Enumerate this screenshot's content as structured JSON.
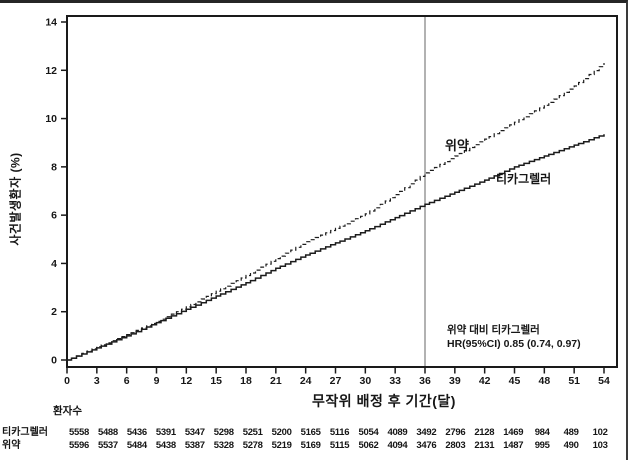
{
  "chart_data": {
    "type": "line",
    "subtype": "kaplan-meier-cumulative-incidence",
    "title": "",
    "xlabel": "무작위 배정 후 기간(달)",
    "ylabel": "사건발생환자 (%)",
    "xlim": [
      0,
      54
    ],
    "ylim": [
      0,
      14
    ],
    "xticks": [
      0,
      3,
      6,
      9,
      12,
      15,
      18,
      21,
      24,
      27,
      30,
      33,
      36,
      39,
      42,
      45,
      48,
      51,
      54
    ],
    "yticks": [
      0,
      2,
      4,
      6,
      8,
      10,
      12,
      14
    ],
    "grid": "off",
    "reference_line_x": 36,
    "x_months": [
      0,
      3,
      6,
      9,
      12,
      15,
      18,
      21,
      24,
      27,
      30,
      33,
      36,
      39,
      42,
      45,
      48,
      51,
      54
    ],
    "series": [
      {
        "name": "위약",
        "style": "dashed",
        "values": [
          0,
          0.55,
          1.05,
          1.6,
          2.2,
          2.85,
          3.5,
          4.2,
          4.9,
          5.45,
          6.05,
          6.85,
          7.75,
          8.45,
          9.15,
          9.85,
          10.55,
          11.35,
          12.3
        ]
      },
      {
        "name": "티카그렐러",
        "style": "solid",
        "values": [
          0,
          0.5,
          1.0,
          1.55,
          2.1,
          2.65,
          3.2,
          3.8,
          4.35,
          4.85,
          5.35,
          5.9,
          6.45,
          6.95,
          7.45,
          8.0,
          8.45,
          8.9,
          9.35
        ]
      }
    ],
    "annotation": {
      "line1": "위약 대비 티카그렐러",
      "line2": "HR(95%CI) 0.85 (0.74, 0.97)"
    },
    "colors": {
      "curve": "#1c1c1c",
      "reference_line": "#666666",
      "axis": "#1a1a1a"
    }
  },
  "risk_table": {
    "header": "환자수",
    "rows": [
      {
        "label": "티카그렐러",
        "counts": [
          5558,
          5488,
          5436,
          5391,
          5347,
          5298,
          5251,
          5200,
          5165,
          5116,
          5054,
          4089,
          3492,
          2796,
          2128,
          1469,
          984,
          489,
          102
        ]
      },
      {
        "label": "위약",
        "counts": [
          5596,
          5537,
          5484,
          5438,
          5387,
          5328,
          5278,
          5219,
          5169,
          5115,
          5062,
          4094,
          3476,
          2803,
          2131,
          1487,
          995,
          490,
          103
        ]
      }
    ]
  }
}
